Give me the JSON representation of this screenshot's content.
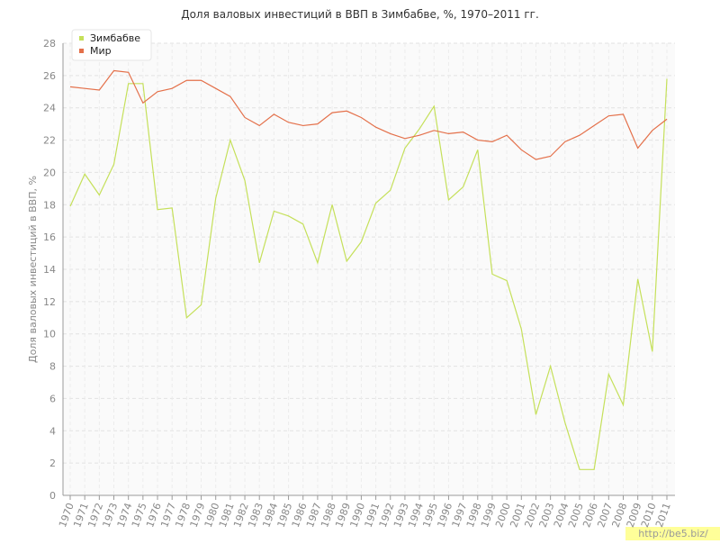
{
  "chart_data": {
    "type": "line",
    "title": "Доля валовых инвестиций в ВВП в Зимбабве, %, 1970–2011 гг.",
    "y_label": "Доля валовых инвестиций в ВВП, %",
    "watermark": "http://be5.biz/",
    "categories": [
      "1970",
      "1971",
      "1972",
      "1973",
      "1974",
      "1975",
      "1976",
      "1977",
      "1978",
      "1979",
      "1980",
      "1981",
      "1982",
      "1983",
      "1984",
      "1985",
      "1986",
      "1987",
      "1988",
      "1989",
      "1990",
      "1991",
      "1992",
      "1993",
      "1994",
      "1995",
      "1996",
      "1997",
      "1998",
      "1999",
      "2000",
      "2001",
      "2002",
      "2003",
      "2004",
      "2005",
      "2006",
      "2007",
      "2008",
      "2009",
      "2010",
      "2011"
    ],
    "series": [
      {
        "name": "Зимбабве",
        "color": "#c5e05a",
        "values": [
          17.9,
          19.9,
          18.6,
          20.5,
          25.5,
          25.5,
          17.7,
          17.8,
          11.0,
          11.8,
          18.4,
          22.0,
          19.5,
          14.4,
          17.6,
          17.3,
          16.8,
          14.4,
          18.0,
          14.5,
          15.7,
          18.1,
          18.9,
          21.5,
          22.7,
          24.1,
          18.3,
          19.1,
          21.4,
          13.7,
          13.3,
          10.3,
          5.0,
          8.0,
          4.5,
          1.6,
          1.6,
          7.5,
          5.6,
          13.4,
          8.9,
          25.8
        ]
      },
      {
        "name": "Мир",
        "color": "#e4704a",
        "values": [
          25.3,
          25.2,
          25.1,
          26.3,
          26.2,
          24.3,
          25.0,
          25.2,
          25.7,
          25.7,
          25.2,
          24.7,
          23.4,
          22.9,
          23.6,
          23.1,
          22.9,
          23.0,
          23.7,
          23.8,
          23.4,
          22.8,
          22.4,
          22.1,
          22.3,
          22.6,
          22.4,
          22.5,
          22.0,
          21.9,
          22.3,
          21.4,
          20.8,
          21.0,
          21.9,
          22.3,
          22.9,
          23.5,
          23.6,
          21.5,
          22.6,
          23.3
        ]
      }
    ],
    "ylim": [
      0,
      28
    ],
    "yticks": [
      0,
      2,
      4,
      6,
      8,
      10,
      12,
      14,
      16,
      18,
      20,
      22,
      24,
      26,
      28
    ],
    "grid": true,
    "legend": "top-left"
  }
}
